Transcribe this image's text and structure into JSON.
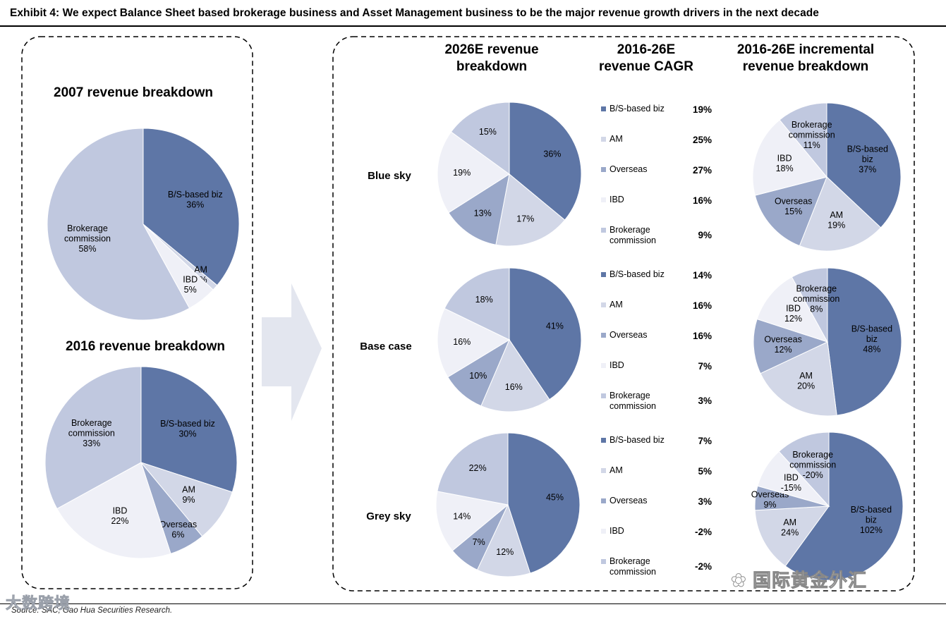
{
  "exhibit_title": "Exhibit 4: We expect Balance Sheet based brokerage business and Asset Management business to be the major revenue growth drivers in the next decade",
  "source": "Source: SAC, Gao Hua Securities Research.",
  "watermark_left": "大数跨境",
  "watermark_right": "国际黄金外汇",
  "colors": {
    "bs": "#5e76a6",
    "am": "#d2d7e7",
    "overseas": "#9aa8c9",
    "ibd": "#eff0f7",
    "brokerage": "#c0c8df"
  },
  "icons": [
    "right-arrow-icon",
    "wechat-icon"
  ],
  "left_panel": {
    "title_2007": "2007 revenue breakdown",
    "title_2016": "2016 revenue breakdown"
  },
  "right_panel": {
    "headers": {
      "col_2026": "2026E revenue breakdown",
      "col_cagr": "2016-26E revenue CAGR",
      "col_incr": "2016-26E incremental revenue breakdown"
    },
    "scenarios": [
      {
        "name": "Blue sky",
        "legend": [
          "B/S-based biz",
          "AM",
          "Overseas",
          "IBD",
          "Brokerage commission"
        ],
        "cagr": [
          "19%",
          "25%",
          "27%",
          "16%",
          "9%"
        ]
      },
      {
        "name": "Base case",
        "legend": [
          "B/S-based biz",
          "AM",
          "Overseas",
          "IBD",
          "Brokerage commission"
        ],
        "cagr": [
          "14%",
          "16%",
          "16%",
          "7%",
          "3%"
        ]
      },
      {
        "name": "Grey sky",
        "legend": [
          "B/S-based biz",
          "AM",
          "Overseas",
          "IBD",
          "Brokerage commission"
        ],
        "cagr": [
          "7%",
          "5%",
          "3%",
          "-2%",
          "-2%"
        ]
      }
    ]
  },
  "chart_data": [
    {
      "type": "pie",
      "title": "2007 revenue breakdown",
      "slices": [
        {
          "label": "B/S-based biz",
          "value": 36,
          "text": "36%"
        },
        {
          "label": "AM",
          "value": 1,
          "text": "1%"
        },
        {
          "label": "IBD",
          "value": 5,
          "text": "5%"
        },
        {
          "label": "Brokerage commission",
          "value": 58,
          "text": "58%"
        }
      ]
    },
    {
      "type": "pie",
      "title": "2016 revenue breakdown",
      "slices": [
        {
          "label": "B/S-based biz",
          "value": 30,
          "text": "30%"
        },
        {
          "label": "AM",
          "value": 9,
          "text": "9%"
        },
        {
          "label": "Overseas",
          "value": 6,
          "text": "6%"
        },
        {
          "label": "IBD",
          "value": 22,
          "text": "22%"
        },
        {
          "label": "Brokerage commission",
          "value": 33,
          "text": "33%"
        }
      ]
    },
    {
      "type": "pie",
      "title": "2026E revenue breakdown",
      "scenario": "Blue sky",
      "slices": [
        {
          "label": "B/S-based biz",
          "value": 36,
          "text": "36%"
        },
        {
          "label": "AM",
          "value": 17,
          "text": "17%"
        },
        {
          "label": "Overseas",
          "value": 13,
          "text": "13%"
        },
        {
          "label": "IBD",
          "value": 19,
          "text": "19%"
        },
        {
          "label": "Brokerage commission",
          "value": 15,
          "text": "15%"
        }
      ]
    },
    {
      "type": "pie",
      "title": "2026E revenue breakdown",
      "scenario": "Base case",
      "slices": [
        {
          "label": "B/S-based biz",
          "value": 41,
          "text": "41%"
        },
        {
          "label": "AM",
          "value": 16,
          "text": "16%"
        },
        {
          "label": "Overseas",
          "value": 10,
          "text": "10%"
        },
        {
          "label": "IBD",
          "value": 16,
          "text": "16%"
        },
        {
          "label": "Brokerage commission",
          "value": 18,
          "text": "18%"
        }
      ]
    },
    {
      "type": "pie",
      "title": "2026E revenue breakdown",
      "scenario": "Grey sky",
      "slices": [
        {
          "label": "B/S-based biz",
          "value": 45,
          "text": "45%"
        },
        {
          "label": "AM",
          "value": 12,
          "text": "12%"
        },
        {
          "label": "Overseas",
          "value": 7,
          "text": "7%"
        },
        {
          "label": "IBD",
          "value": 14,
          "text": "14%"
        },
        {
          "label": "Brokerage commission",
          "value": 22,
          "text": "22%"
        }
      ]
    },
    {
      "type": "pie",
      "title": "2016-26E incremental revenue breakdown",
      "scenario": "Blue sky",
      "slices": [
        {
          "label": "B/S-based biz",
          "value": 37,
          "text": "37%"
        },
        {
          "label": "AM",
          "value": 19,
          "text": "19%"
        },
        {
          "label": "Overseas",
          "value": 15,
          "text": "15%"
        },
        {
          "label": "IBD",
          "value": 18,
          "text": "18%"
        },
        {
          "label": "Brokerage commission",
          "value": 11,
          "text": "11%"
        }
      ]
    },
    {
      "type": "pie",
      "title": "2016-26E incremental revenue breakdown",
      "scenario": "Base case",
      "slices": [
        {
          "label": "B/S-based biz",
          "value": 48,
          "text": "48%"
        },
        {
          "label": "AM",
          "value": 20,
          "text": "20%"
        },
        {
          "label": "Overseas",
          "value": 12,
          "text": "12%"
        },
        {
          "label": "IBD",
          "value": 12,
          "text": "12%"
        },
        {
          "label": "Brokerage commission",
          "value": 8,
          "text": "8%"
        }
      ]
    },
    {
      "type": "pie",
      "title": "2016-26E incremental revenue breakdown",
      "scenario": "Grey sky",
      "slices": [
        {
          "label": "B/S-based biz",
          "value": 102,
          "text": "102%"
        },
        {
          "label": "AM",
          "value": 24,
          "text": "24%"
        },
        {
          "label": "Overseas",
          "value": 9,
          "text": "9%"
        },
        {
          "label": "IBD",
          "value": -15,
          "text": "-15%"
        },
        {
          "label": "Brokerage commission",
          "value": -20,
          "text": "-20%"
        }
      ]
    }
  ]
}
